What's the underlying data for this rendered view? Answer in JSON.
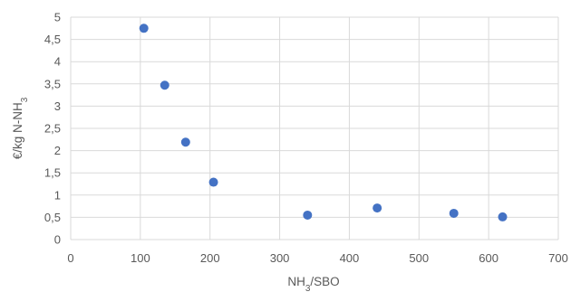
{
  "chart_data": {
    "type": "scatter",
    "title": "",
    "xlabel": "NH3/SBO",
    "xlabel_parts": {
      "base": "NH",
      "sub": "3",
      "rest": "/SBO"
    },
    "ylabel": "€/kg N-NH3",
    "ylabel_parts": {
      "base": "€/kg N-NH",
      "sub": "3"
    },
    "xlim": [
      0,
      700
    ],
    "ylim": [
      0,
      5
    ],
    "x_ticks": [
      0,
      100,
      200,
      300,
      400,
      500,
      600,
      700
    ],
    "x_tick_labels": [
      "0",
      "100",
      "200",
      "300",
      "400",
      "500",
      "600",
      "700"
    ],
    "y_ticks": [
      0,
      0.5,
      1,
      1.5,
      2,
      2.5,
      3,
      3.5,
      4,
      4.5,
      5
    ],
    "y_tick_labels": [
      "0",
      "0,5",
      "1",
      "1,5",
      "2",
      "2,5",
      "3",
      "3,5",
      "4",
      "4,5",
      "5"
    ],
    "grid": true,
    "legend": "none",
    "marker_color": "#4472C4",
    "grid_color": "#D9D9D9",
    "series": [
      {
        "x": [
          105,
          135,
          165,
          205,
          340,
          440,
          550,
          620
        ],
        "y": [
          4.75,
          3.47,
          2.19,
          1.29,
          0.55,
          0.71,
          0.59,
          0.51
        ]
      }
    ]
  }
}
